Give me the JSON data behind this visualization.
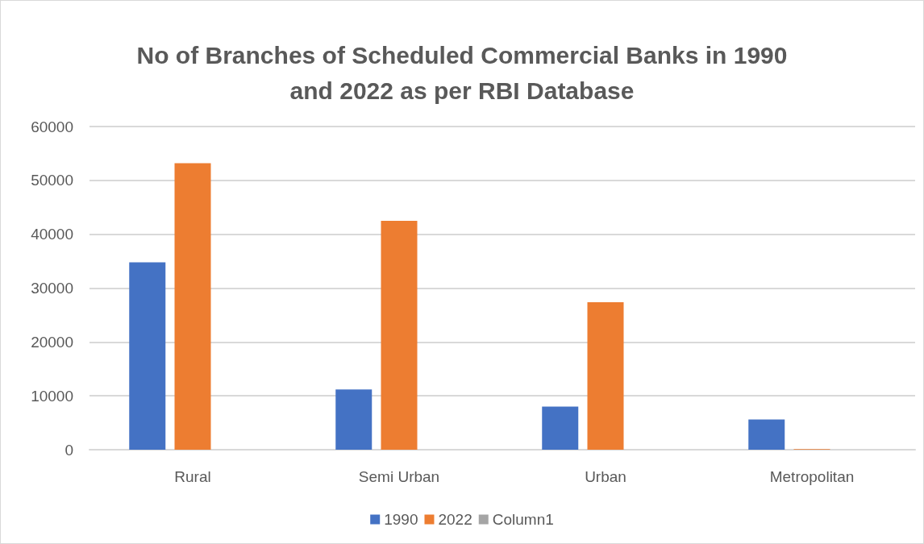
{
  "chart_data": {
    "type": "bar",
    "title": "No of Branches of Scheduled Commercial Banks in 1990\nand 2022 as per RBI Database",
    "categories": [
      "Rural",
      "Semi Urban",
      "Urban",
      "Metropolitan"
    ],
    "series": [
      {
        "name": "1990",
        "color": "#4472c4",
        "values": [
          34800,
          11200,
          8000,
          5600
        ]
      },
      {
        "name": "2022",
        "color": "#ed7d31",
        "values": [
          53200,
          42500,
          27400,
          100
        ]
      },
      {
        "name": "Column1",
        "color": "#a5a5a5",
        "values": [
          null,
          null,
          null,
          null
        ]
      }
    ],
    "ylim": [
      0,
      60000
    ],
    "yticks": [
      0,
      10000,
      20000,
      30000,
      40000,
      50000,
      60000
    ],
    "grid": "y",
    "legend": "bottom"
  }
}
